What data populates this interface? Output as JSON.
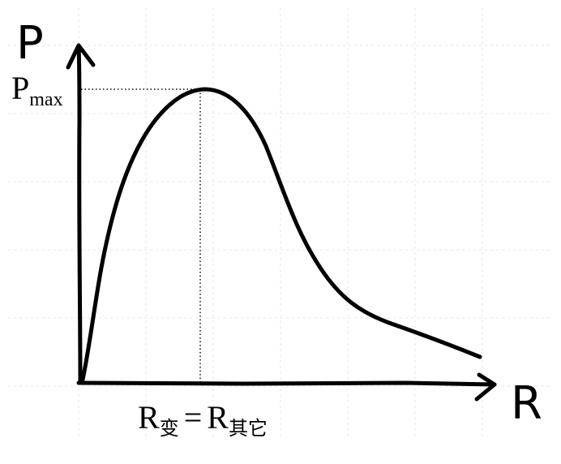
{
  "y_axis_label": "P",
  "x_axis_label": "R",
  "pmax": {
    "main": "P",
    "sub": "max"
  },
  "peak_condition": {
    "left_main": "R",
    "left_sub": "变",
    "equals": "=",
    "right_main": "R",
    "right_sub": "其它"
  }
}
